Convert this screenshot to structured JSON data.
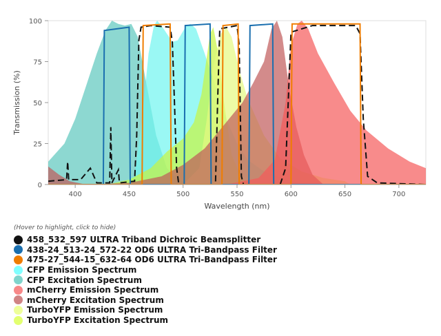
{
  "chart_data": {
    "type": "area",
    "xlabel": "Wavelength (nm)",
    "ylabel": "Transmission (%)",
    "xlim": [
      375,
      725
    ],
    "ylim": [
      0,
      100
    ],
    "xticks": [
      400,
      450,
      500,
      550,
      600,
      650,
      700
    ],
    "yticks": [
      0,
      25,
      50,
      75,
      100
    ],
    "grid": false,
    "legend_hint": "(Hover to highlight, click to hide)",
    "legend_position": "bottom",
    "series": [
      {
        "name": "CFP Excitation Spectrum",
        "kind": "fill",
        "color": "#5cc7bd",
        "points": [
          [
            375,
            14
          ],
          [
            390,
            25
          ],
          [
            400,
            40
          ],
          [
            410,
            60
          ],
          [
            420,
            80
          ],
          [
            428,
            94
          ],
          [
            434,
            100
          ],
          [
            440,
            98
          ],
          [
            446,
            97
          ],
          [
            452,
            98
          ],
          [
            458,
            90
          ],
          [
            465,
            65
          ],
          [
            475,
            30
          ],
          [
            485,
            10
          ],
          [
            495,
            3
          ],
          [
            510,
            0
          ]
        ]
      },
      {
        "name": "CFP Emission Spectrum",
        "kind": "fill",
        "color": "#6ff5f0",
        "points": [
          [
            440,
            0
          ],
          [
            455,
            5
          ],
          [
            462,
            40
          ],
          [
            468,
            80
          ],
          [
            473,
            97
          ],
          [
            476,
            100
          ],
          [
            482,
            95
          ],
          [
            490,
            87
          ],
          [
            495,
            88
          ],
          [
            503,
            97
          ],
          [
            507,
            98
          ],
          [
            512,
            95
          ],
          [
            520,
            80
          ],
          [
            530,
            60
          ],
          [
            540,
            40
          ],
          [
            550,
            25
          ],
          [
            560,
            15
          ],
          [
            575,
            8
          ],
          [
            600,
            2
          ],
          [
            620,
            0
          ]
        ]
      },
      {
        "name": "TurboYFP Excitation Spectrum",
        "kind": "fill",
        "color": "#c8f540",
        "points": [
          [
            430,
            0
          ],
          [
            450,
            3
          ],
          [
            470,
            10
          ],
          [
            485,
            20
          ],
          [
            500,
            28
          ],
          [
            510,
            38
          ],
          [
            517,
            55
          ],
          [
            522,
            78
          ],
          [
            525,
            92
          ],
          [
            528,
            96
          ],
          [
            532,
            82
          ],
          [
            538,
            50
          ],
          [
            545,
            18
          ],
          [
            555,
            3
          ],
          [
            565,
            0
          ]
        ]
      },
      {
        "name": "TurboYFP Emission Spectrum",
        "kind": "fill",
        "color": "#e6fa80",
        "points": [
          [
            500,
            0
          ],
          [
            515,
            10
          ],
          [
            522,
            40
          ],
          [
            528,
            72
          ],
          [
            535,
            92
          ],
          [
            540,
            96
          ],
          [
            545,
            90
          ],
          [
            552,
            70
          ],
          [
            560,
            52
          ],
          [
            575,
            30
          ],
          [
            590,
            16
          ],
          [
            610,
            8
          ],
          [
            630,
            4
          ],
          [
            650,
            2
          ],
          [
            655,
            0
          ]
        ]
      },
      {
        "name": "mCherry Excitation Spectrum",
        "kind": "fill",
        "color": "#c05a5a",
        "points": [
          [
            375,
            11
          ],
          [
            385,
            6
          ],
          [
            395,
            2
          ],
          [
            410,
            0
          ],
          [
            450,
            1
          ],
          [
            480,
            5
          ],
          [
            500,
            12
          ],
          [
            520,
            22
          ],
          [
            540,
            38
          ],
          [
            555,
            50
          ],
          [
            565,
            62
          ],
          [
            575,
            75
          ],
          [
            582,
            95
          ],
          [
            587,
            100
          ],
          [
            592,
            90
          ],
          [
            598,
            60
          ],
          [
            605,
            35
          ],
          [
            612,
            18
          ],
          [
            620,
            6
          ],
          [
            630,
            0
          ]
        ]
      },
      {
        "name": "mCherry Emission Spectrum",
        "kind": "fill",
        "color": "#f55a5a",
        "points": [
          [
            540,
            0
          ],
          [
            570,
            4
          ],
          [
            585,
            15
          ],
          [
            595,
            50
          ],
          [
            600,
            85
          ],
          [
            606,
            98
          ],
          [
            610,
            100
          ],
          [
            616,
            95
          ],
          [
            625,
            80
          ],
          [
            640,
            62
          ],
          [
            655,
            45
          ],
          [
            670,
            33
          ],
          [
            690,
            22
          ],
          [
            710,
            14
          ],
          [
            725,
            10
          ]
        ]
      },
      {
        "name": "458_532_597 ULTRA Triband Dichroic Beamsplitter",
        "kind": "dashed",
        "color": "#111111",
        "points": [
          [
            375,
            2
          ],
          [
            392,
            3
          ],
          [
            393,
            14
          ],
          [
            394,
            3
          ],
          [
            405,
            3
          ],
          [
            414,
            10
          ],
          [
            420,
            1
          ],
          [
            432,
            1
          ],
          [
            433,
            35
          ],
          [
            434,
            1
          ],
          [
            440,
            9
          ],
          [
            441,
            1
          ],
          [
            455,
            2
          ],
          [
            457,
            30
          ],
          [
            459,
            88
          ],
          [
            461,
            96
          ],
          [
            470,
            97
          ],
          [
            488,
            96
          ],
          [
            490,
            87
          ],
          [
            492,
            50
          ],
          [
            494,
            10
          ],
          [
            496,
            0
          ],
          [
            530,
            0
          ],
          [
            532,
            50
          ],
          [
            534,
            95
          ],
          [
            550,
            97
          ],
          [
            552,
            85
          ],
          [
            554,
            5
          ],
          [
            556,
            0
          ],
          [
            590,
            0
          ],
          [
            595,
            10
          ],
          [
            598,
            60
          ],
          [
            600,
            93
          ],
          [
            620,
            97
          ],
          [
            660,
            97
          ],
          [
            664,
            92
          ],
          [
            667,
            40
          ],
          [
            671,
            5
          ],
          [
            680,
            1
          ],
          [
            725,
            0
          ]
        ]
      },
      {
        "name": "438-24_513-24_572-22 OD6 ULTRA Tri-Bandpass Filter",
        "kind": "line",
        "color": "#1a6faf",
        "points": [
          [
            375,
            0
          ],
          [
            426,
            0
          ],
          [
            427,
            94
          ],
          [
            450,
            96
          ],
          [
            451,
            0
          ],
          [
            501,
            0
          ],
          [
            502,
            97
          ],
          [
            525,
            98
          ],
          [
            526,
            0
          ],
          [
            561,
            0
          ],
          [
            562,
            97
          ],
          [
            583,
            98
          ],
          [
            584,
            0
          ],
          [
            725,
            0
          ]
        ]
      },
      {
        "name": "475-27_544-15_632-64 OD6 ULTRA Tri-Bandpass Filter",
        "kind": "line",
        "color": "#f07d00",
        "points": [
          [
            375,
            0
          ],
          [
            462,
            0
          ],
          [
            463,
            97
          ],
          [
            488,
            98
          ],
          [
            489,
            0
          ],
          [
            536,
            0
          ],
          [
            537,
            97
          ],
          [
            551,
            98
          ],
          [
            552,
            0
          ],
          [
            600,
            0
          ],
          [
            601,
            98
          ],
          [
            664,
            98
          ],
          [
            665,
            0
          ],
          [
            725,
            0
          ]
        ]
      }
    ]
  },
  "legend": [
    {
      "label": "458_532_597 ULTRA Triband Dichroic Beamsplitter",
      "color": "#111111"
    },
    {
      "label": "438-24_513-24_572-22 OD6 ULTRA Tri-Bandpass Filter",
      "color": "#1a6faf"
    },
    {
      "label": "475-27_544-15_632-64 OD6 ULTRA Tri-Bandpass Filter",
      "color": "#f07d00"
    },
    {
      "label": "CFP Emission Spectrum",
      "color": "#80ffff"
    },
    {
      "label": "CFP Excitation Spectrum",
      "color": "#80d4cc"
    },
    {
      "label": "mCherry Emission Spectrum",
      "color": "#f88888"
    },
    {
      "label": "mCherry Excitation Spectrum",
      "color": "#d08484"
    },
    {
      "label": "TurboYFP Emission Spectrum",
      "color": "#eeff99"
    },
    {
      "label": "TurboYFP Excitation Spectrum",
      "color": "#e2ff70"
    }
  ]
}
